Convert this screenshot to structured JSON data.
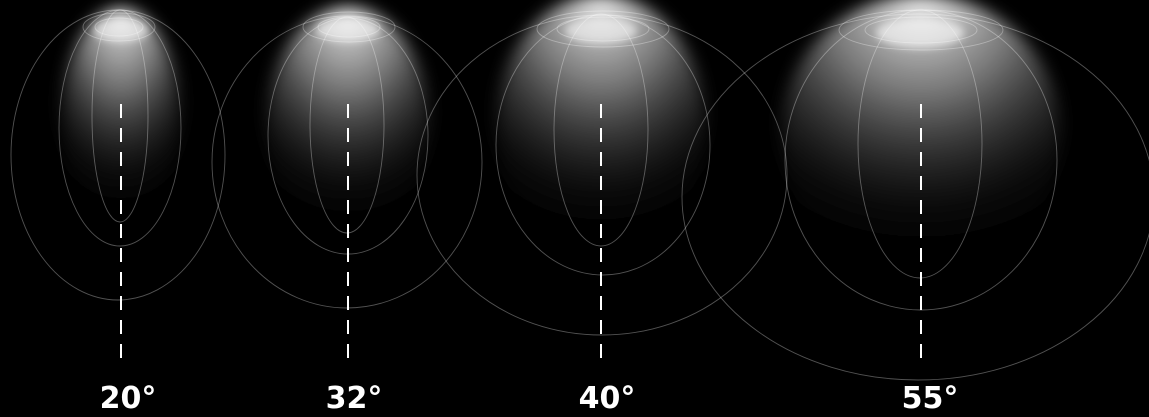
{
  "beams": [
    {
      "angle_deg": 20,
      "label": "20°"
    },
    {
      "angle_deg": 32,
      "label": "32°"
    },
    {
      "angle_deg": 40,
      "label": "40°"
    },
    {
      "angle_deg": 55,
      "label": "55°"
    }
  ],
  "colors": {
    "background": "#000000",
    "beam_light": "#ffffff",
    "contour": "#ffffff",
    "axis_line": "#ffffff",
    "label": "#ffffff"
  }
}
